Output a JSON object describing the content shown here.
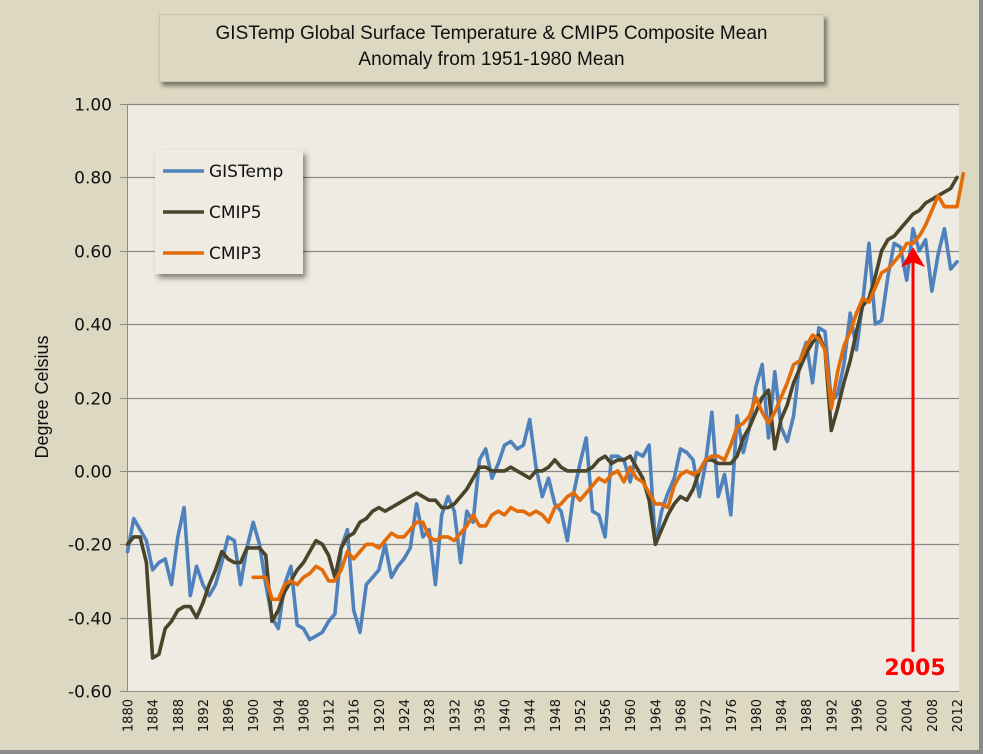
{
  "chart_data": {
    "type": "line",
    "title": "GISTemp Global Surface Temperature & CMIP5 Composite Mean",
    "subtitle": "Anomaly from 1951-1980 Mean",
    "xlabel": "",
    "ylabel": "Degree Celsius",
    "ylim": [
      -0.6,
      1.0
    ],
    "xlim": [
      1880,
      2012
    ],
    "yticks": [
      "1.00",
      "0.80",
      "0.60",
      "0.40",
      "0.20",
      "0.00",
      "-0.20",
      "-0.40",
      "-0.60"
    ],
    "ytick_values": [
      1.0,
      0.8,
      0.6,
      0.4,
      0.2,
      0.0,
      -0.2,
      -0.4,
      -0.6
    ],
    "xticks": [
      "1880",
      "1884",
      "1888",
      "1892",
      "1896",
      "1900",
      "1904",
      "1908",
      "1912",
      "1916",
      "1920",
      "1924",
      "1928",
      "1932",
      "1936",
      "1940",
      "1944",
      "1948",
      "1952",
      "1956",
      "1960",
      "1964",
      "1968",
      "1972",
      "1976",
      "1980",
      "1984",
      "1988",
      "1992",
      "1996",
      "2000",
      "2004",
      "2008",
      "2012"
    ],
    "grid": "horizontal",
    "legend_position": "top-left",
    "series": [
      {
        "name": "GISTemp",
        "color": "#4f81bd",
        "start_year": 1880,
        "values": [
          -0.22,
          -0.13,
          -0.16,
          -0.19,
          -0.27,
          -0.25,
          -0.24,
          -0.31,
          -0.18,
          -0.1,
          -0.34,
          -0.26,
          -0.31,
          -0.34,
          -0.31,
          -0.25,
          -0.18,
          -0.19,
          -0.31,
          -0.21,
          -0.14,
          -0.2,
          -0.31,
          -0.4,
          -0.43,
          -0.31,
          -0.26,
          -0.42,
          -0.43,
          -0.46,
          -0.45,
          -0.44,
          -0.41,
          -0.39,
          -0.21,
          -0.16,
          -0.38,
          -0.44,
          -0.31,
          -0.29,
          -0.27,
          -0.2,
          -0.29,
          -0.26,
          -0.24,
          -0.21,
          -0.09,
          -0.18,
          -0.16,
          -0.31,
          -0.12,
          -0.07,
          -0.11,
          -0.25,
          -0.11,
          -0.14,
          0.03,
          0.06,
          -0.02,
          0.02,
          0.07,
          0.08,
          0.06,
          0.07,
          0.14,
          0.01,
          -0.07,
          -0.02,
          -0.09,
          -0.11,
          -0.19,
          -0.06,
          0.02,
          0.09,
          -0.11,
          -0.12,
          -0.18,
          0.04,
          0.04,
          0.03,
          -0.03,
          0.05,
          0.04,
          0.07,
          -0.2,
          -0.11,
          -0.06,
          -0.02,
          0.06,
          0.05,
          0.03,
          -0.07,
          0.02,
          0.16,
          -0.07,
          -0.01,
          -0.12,
          0.15,
          0.05,
          0.12,
          0.23,
          0.29,
          0.09,
          0.27,
          0.12,
          0.08,
          0.15,
          0.3,
          0.35,
          0.24,
          0.39,
          0.38,
          0.19,
          0.21,
          0.29,
          0.43,
          0.33,
          0.46,
          0.62,
          0.4,
          0.41,
          0.53,
          0.62,
          0.61,
          0.52,
          0.66,
          0.6,
          0.63,
          0.49,
          0.59,
          0.66,
          0.55,
          0.57
        ]
      },
      {
        "name": "CMIP5",
        "color": "#4a452a",
        "start_year": 1880,
        "values": [
          -0.2,
          -0.18,
          -0.18,
          -0.25,
          -0.51,
          -0.5,
          -0.43,
          -0.41,
          -0.38,
          -0.37,
          -0.37,
          -0.4,
          -0.36,
          -0.31,
          -0.27,
          -0.22,
          -0.24,
          -0.25,
          -0.25,
          -0.21,
          -0.21,
          -0.21,
          -0.23,
          -0.41,
          -0.38,
          -0.33,
          -0.3,
          -0.27,
          -0.25,
          -0.22,
          -0.19,
          -0.2,
          -0.23,
          -0.29,
          -0.21,
          -0.18,
          -0.17,
          -0.14,
          -0.13,
          -0.11,
          -0.1,
          -0.11,
          -0.1,
          -0.09,
          -0.08,
          -0.07,
          -0.06,
          -0.07,
          -0.08,
          -0.08,
          -0.1,
          -0.1,
          -0.09,
          -0.07,
          -0.05,
          -0.02,
          0.01,
          0.01,
          0.0,
          0.0,
          0.0,
          0.01,
          0.0,
          -0.01,
          -0.02,
          0.0,
          0.0,
          0.01,
          0.03,
          0.01,
          0.0,
          0.0,
          0.0,
          0.0,
          0.01,
          0.03,
          0.04,
          0.02,
          0.03,
          0.03,
          0.04,
          0.01,
          -0.02,
          -0.08,
          -0.2,
          -0.16,
          -0.12,
          -0.09,
          -0.07,
          -0.08,
          -0.05,
          0.0,
          0.03,
          0.03,
          0.02,
          0.02,
          0.02,
          0.04,
          0.09,
          0.12,
          0.16,
          0.2,
          0.22,
          0.06,
          0.14,
          0.18,
          0.24,
          0.28,
          0.32,
          0.35,
          0.37,
          0.33,
          0.11,
          0.17,
          0.24,
          0.3,
          0.38,
          0.45,
          0.47,
          0.53,
          0.6,
          0.63,
          0.64,
          0.66,
          0.68,
          0.7,
          0.71,
          0.73,
          0.74,
          0.75,
          0.76,
          0.77,
          0.8
        ]
      },
      {
        "name": "CMIP3",
        "color": "#e36c09",
        "start_year": 1900,
        "values": [
          -0.29,
          -0.29,
          -0.29,
          -0.35,
          -0.35,
          -0.31,
          -0.3,
          -0.31,
          -0.29,
          -0.28,
          -0.26,
          -0.27,
          -0.3,
          -0.3,
          -0.27,
          -0.22,
          -0.24,
          -0.22,
          -0.2,
          -0.2,
          -0.21,
          -0.19,
          -0.17,
          -0.18,
          -0.18,
          -0.16,
          -0.14,
          -0.14,
          -0.18,
          -0.19,
          -0.18,
          -0.18,
          -0.19,
          -0.17,
          -0.15,
          -0.12,
          -0.15,
          -0.15,
          -0.12,
          -0.11,
          -0.12,
          -0.1,
          -0.11,
          -0.11,
          -0.12,
          -0.11,
          -0.12,
          -0.14,
          -0.1,
          -0.09,
          -0.07,
          -0.06,
          -0.08,
          -0.06,
          -0.04,
          -0.02,
          -0.03,
          -0.01,
          0.0,
          -0.03,
          0.01,
          -0.02,
          -0.03,
          -0.06,
          -0.09,
          -0.09,
          -0.1,
          -0.04,
          -0.01,
          0.0,
          -0.01,
          0.0,
          0.03,
          0.04,
          0.04,
          0.03,
          0.07,
          0.12,
          0.13,
          0.15,
          0.2,
          0.16,
          0.13,
          0.16,
          0.2,
          0.24,
          0.29,
          0.3,
          0.34,
          0.37,
          0.36,
          0.33,
          0.17,
          0.27,
          0.34,
          0.38,
          0.43,
          0.47,
          0.46,
          0.5,
          0.54,
          0.55,
          0.57,
          0.59,
          0.62,
          0.62,
          0.64,
          0.67,
          0.71,
          0.75,
          0.72,
          0.72,
          0.72,
          0.81
        ]
      }
    ],
    "annotations": [
      {
        "type": "arrow",
        "text": "2005",
        "x": 2005,
        "y_tip": 0.61,
        "color": "#ff0000"
      }
    ]
  }
}
